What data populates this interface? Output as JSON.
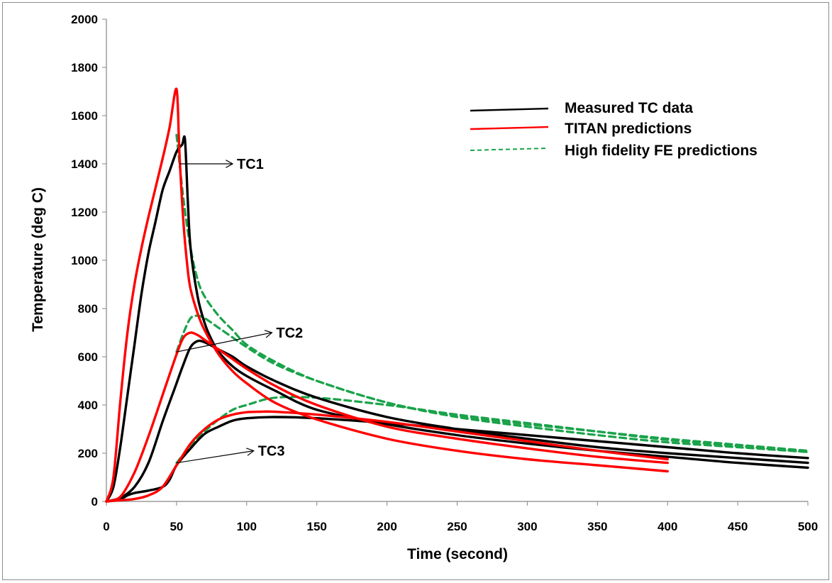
{
  "chart_data": {
    "type": "line",
    "xlabel": "Time (second)",
    "ylabel": "Temperature (deg C)",
    "xlim": [
      0,
      500
    ],
    "ylim": [
      0,
      2000
    ],
    "x_ticks": [
      0,
      50,
      100,
      150,
      200,
      250,
      300,
      350,
      400,
      450,
      500
    ],
    "y_ticks": [
      0,
      200,
      400,
      600,
      800,
      1000,
      1200,
      1400,
      1600,
      1800,
      2000
    ],
    "grid": false,
    "legend": {
      "placement": "top-right",
      "entries": [
        {
          "label": "Measured  TC data",
          "color": "#000000",
          "style": "solid"
        },
        {
          "label": "TITAN predictions",
          "color": "#ff0000",
          "style": "solid"
        },
        {
          "label": "High fidelity FE predictions",
          "color": "#1aa34a",
          "style": "dashed"
        }
      ]
    },
    "annotations": [
      {
        "text": "TC1",
        "arrow_from": [
          52,
          1400
        ],
        "arrow_to": [
          90,
          1400
        ]
      },
      {
        "text": "TC2",
        "arrow_from": [
          50,
          620
        ],
        "arrow_to": [
          118,
          700
        ]
      },
      {
        "text": "TC3",
        "arrow_from": [
          50,
          160
        ],
        "arrow_to": [
          105,
          210
        ]
      }
    ],
    "series": [
      {
        "group": "Measured  TC data",
        "probe": "TC1",
        "color": "#000000",
        "style": "solid",
        "x": [
          0,
          5,
          10,
          15,
          20,
          25,
          30,
          35,
          40,
          45,
          50,
          54,
          56,
          58,
          60,
          65,
          70,
          75,
          80,
          90,
          100,
          120,
          150,
          200,
          250,
          300,
          350,
          400,
          450,
          500
        ],
        "y": [
          0,
          60,
          230,
          440,
          650,
          860,
          1030,
          1160,
          1290,
          1370,
          1450,
          1480,
          1500,
          1250,
          1050,
          850,
          740,
          670,
          620,
          560,
          520,
          460,
          380,
          320,
          275,
          240,
          210,
          185,
          160,
          140
        ]
      },
      {
        "group": "Measured  TC data",
        "probe": "TC2",
        "color": "#000000",
        "style": "solid",
        "x": [
          0,
          10,
          20,
          30,
          40,
          50,
          55,
          60,
          65,
          70,
          80,
          90,
          100,
          120,
          150,
          200,
          250,
          300,
          350,
          400,
          450,
          500
        ],
        "y": [
          0,
          15,
          60,
          160,
          330,
          490,
          570,
          640,
          665,
          660,
          630,
          600,
          560,
          500,
          430,
          350,
          300,
          260,
          225,
          200,
          180,
          160
        ]
      },
      {
        "group": "Measured  TC data",
        "probe": "TC3",
        "color": "#000000",
        "style": "solid",
        "x": [
          0,
          10,
          15,
          20,
          30,
          40,
          45,
          50,
          60,
          70,
          80,
          90,
          100,
          120,
          150,
          200,
          250,
          300,
          350,
          400,
          450,
          500
        ],
        "y": [
          0,
          10,
          25,
          35,
          45,
          60,
          90,
          150,
          220,
          280,
          310,
          335,
          345,
          350,
          345,
          325,
          300,
          275,
          250,
          225,
          200,
          180
        ]
      },
      {
        "group": "TITAN predictions",
        "probe": "TC1",
        "color": "#ff0000",
        "style": "solid",
        "x": [
          0,
          5,
          10,
          15,
          20,
          25,
          30,
          40,
          45,
          50,
          52,
          55,
          58,
          60,
          65,
          70,
          80,
          90,
          100,
          120,
          150,
          200,
          250,
          300,
          350,
          400
        ],
        "y": [
          0,
          100,
          420,
          700,
          900,
          1050,
          1180,
          1420,
          1550,
          1710,
          1450,
          1150,
          960,
          880,
          780,
          710,
          610,
          540,
          490,
          410,
          340,
          260,
          210,
          175,
          150,
          125
        ]
      },
      {
        "group": "TITAN predictions",
        "probe": "TC2",
        "color": "#ff0000",
        "style": "solid",
        "x": [
          0,
          10,
          20,
          30,
          40,
          50,
          55,
          60,
          65,
          70,
          80,
          90,
          100,
          120,
          150,
          200,
          250,
          300,
          350,
          400
        ],
        "y": [
          0,
          20,
          120,
          270,
          440,
          610,
          680,
          700,
          690,
          670,
          630,
          590,
          550,
          480,
          400,
          310,
          260,
          220,
          185,
          160
        ]
      },
      {
        "group": "TITAN predictions",
        "probe": "TC3",
        "color": "#ff0000",
        "style": "solid",
        "x": [
          0,
          10,
          20,
          30,
          40,
          50,
          60,
          70,
          80,
          90,
          100,
          110,
          120,
          150,
          200,
          250,
          300,
          350,
          400
        ],
        "y": [
          0,
          5,
          10,
          25,
          60,
          150,
          240,
          300,
          340,
          360,
          370,
          372,
          372,
          360,
          330,
          290,
          250,
          210,
          175
        ]
      },
      {
        "group": "High fidelity FE predictions",
        "probe": "TC1",
        "color": "#1aa34a",
        "style": "dashed",
        "x": [
          50,
          55,
          60,
          65,
          70,
          80,
          90,
          100,
          120,
          150,
          200,
          250,
          300,
          350,
          400,
          450,
          500
        ],
        "y": [
          1520,
          1250,
          1050,
          920,
          850,
          770,
          710,
          650,
          580,
          500,
          410,
          350,
          310,
          275,
          245,
          225,
          205
        ]
      },
      {
        "group": "High fidelity FE predictions",
        "probe": "TC2",
        "color": "#1aa34a",
        "style": "dashed",
        "x": [
          50,
          55,
          60,
          65,
          70,
          80,
          90,
          100,
          120,
          150,
          200,
          250,
          300,
          350,
          400,
          450,
          500
        ],
        "y": [
          620,
          700,
          760,
          770,
          760,
          720,
          680,
          640,
          570,
          500,
          410,
          355,
          320,
          290,
          260,
          235,
          210
        ]
      },
      {
        "group": "High fidelity FE predictions",
        "probe": "TC3",
        "color": "#1aa34a",
        "style": "dashed",
        "x": [
          50,
          60,
          70,
          80,
          90,
          100,
          120,
          150,
          200,
          250,
          300,
          350,
          400,
          450,
          500
        ],
        "y": [
          160,
          230,
          290,
          340,
          380,
          400,
          430,
          430,
          400,
          360,
          325,
          290,
          255,
          230,
          205
        ]
      }
    ]
  }
}
